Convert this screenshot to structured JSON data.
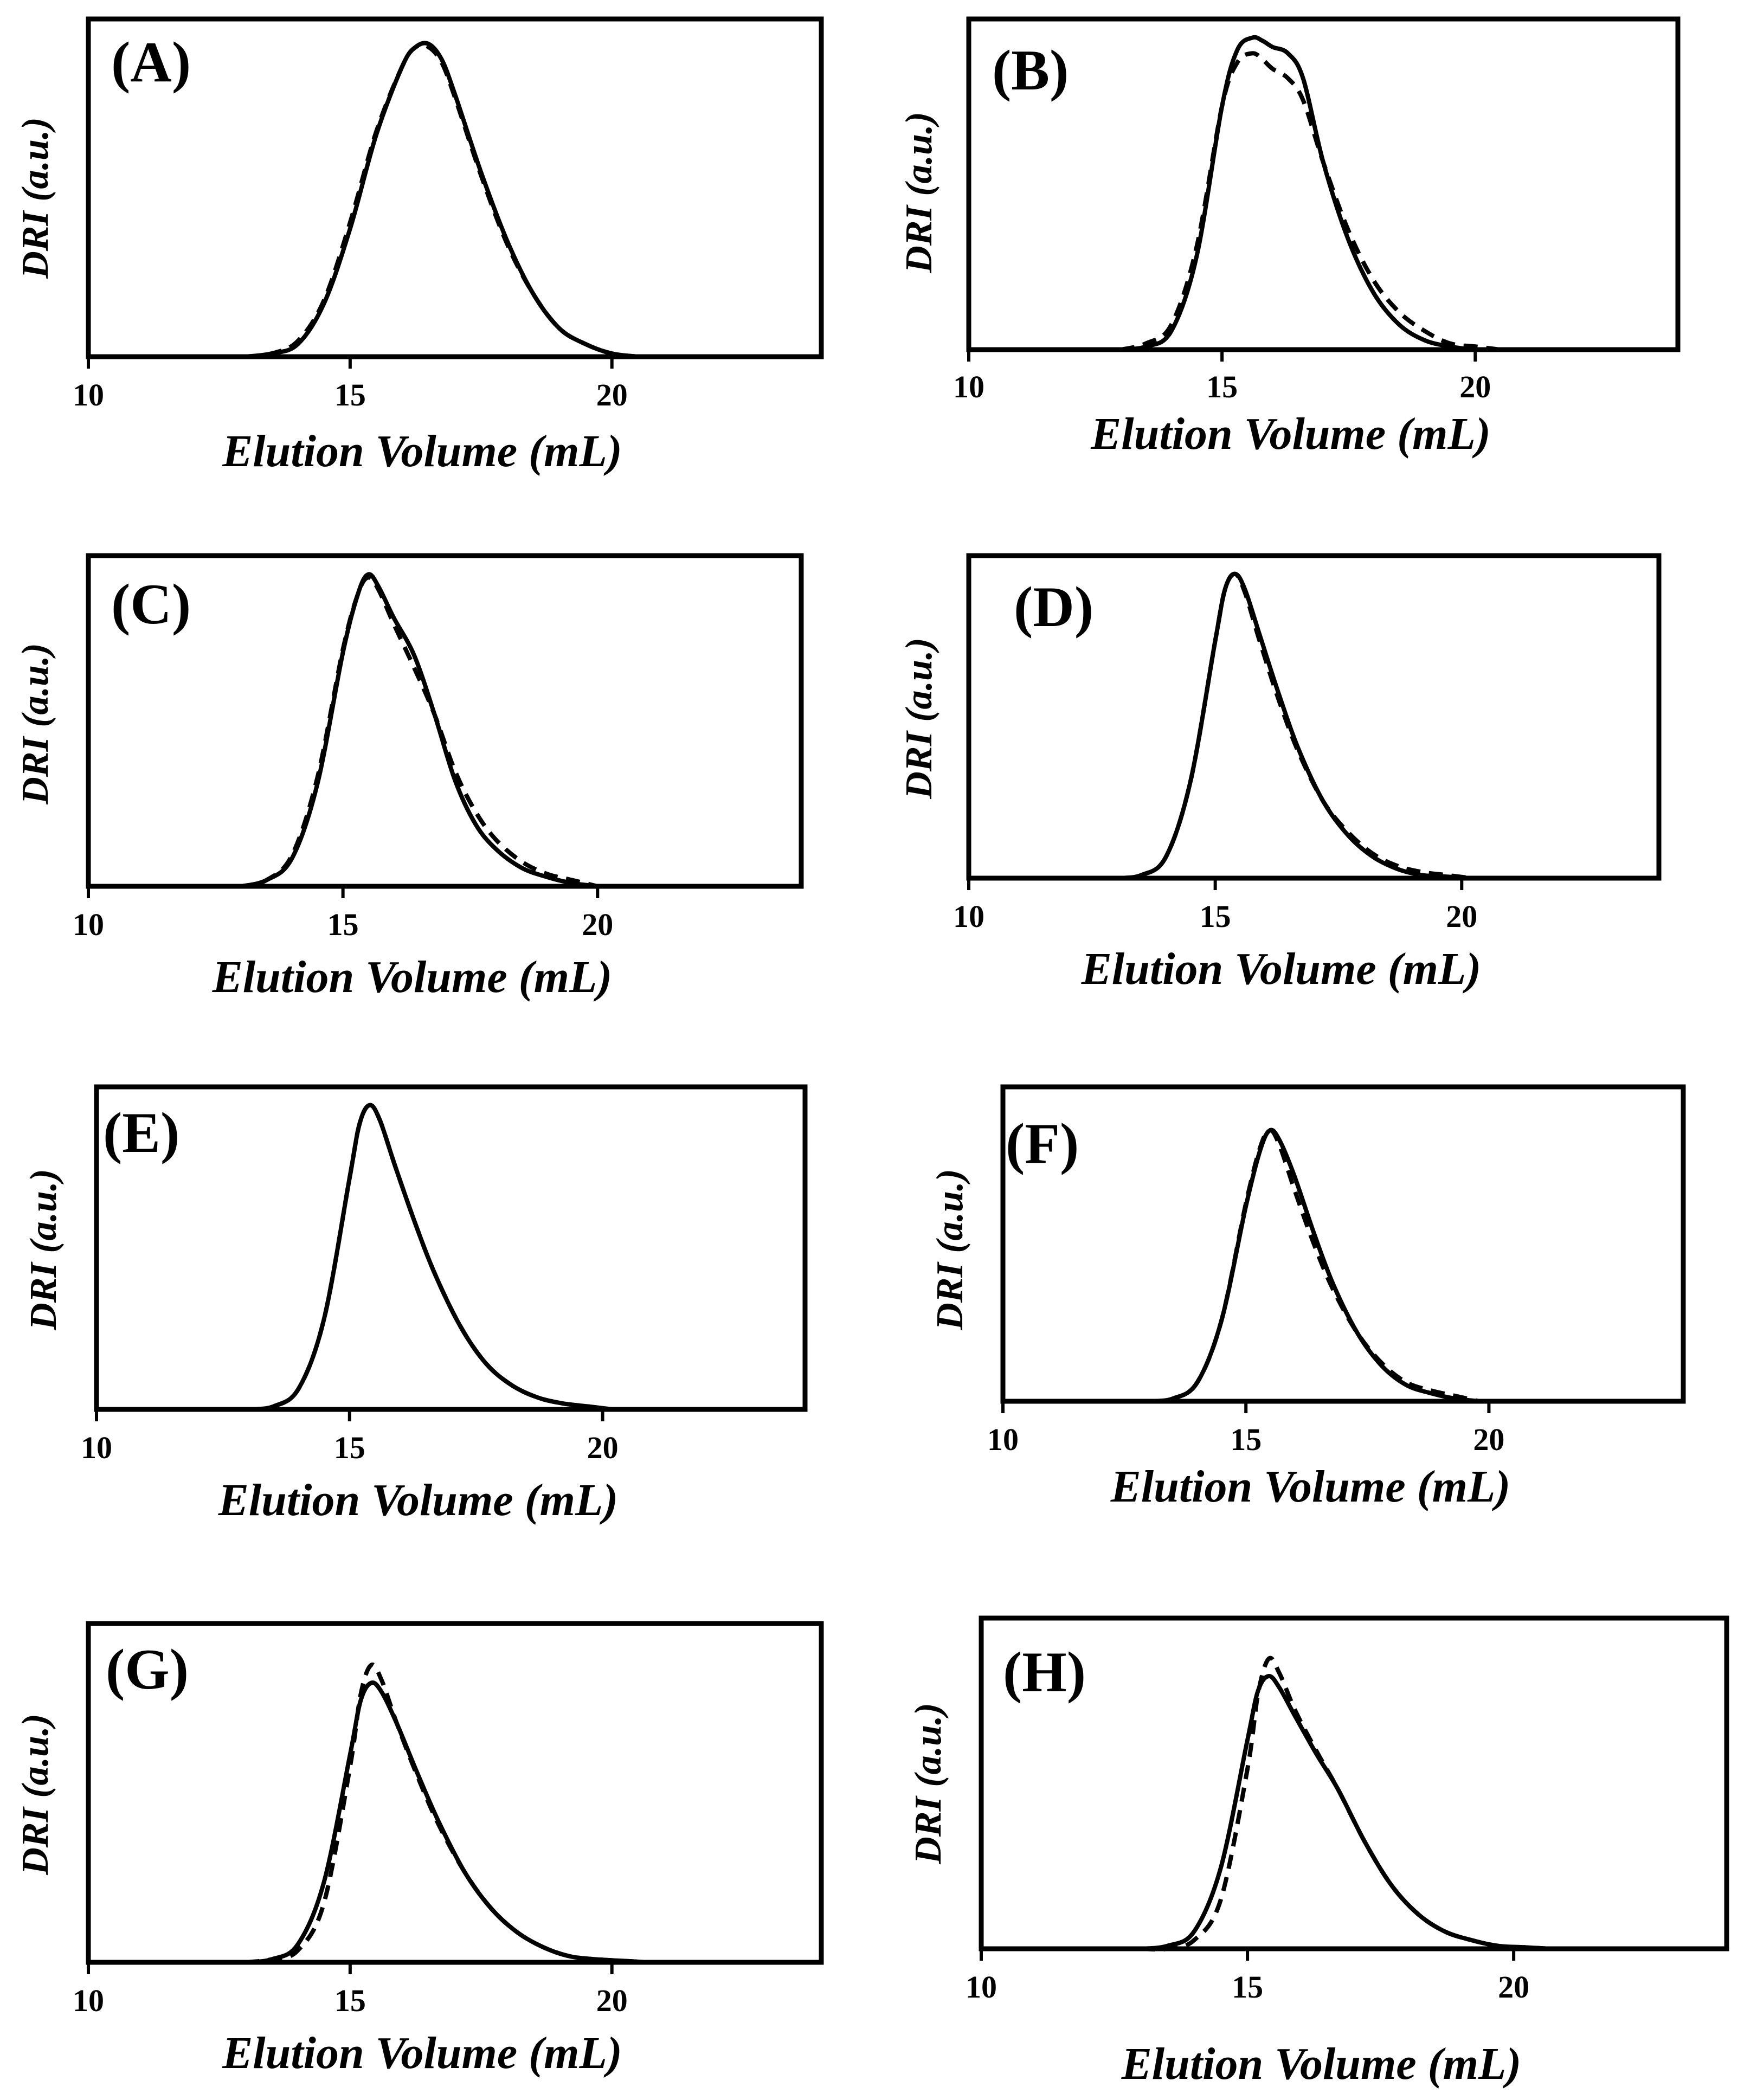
{
  "figure": {
    "panel_count": 8,
    "line_color": "#000000",
    "background_color": "#ffffff"
  },
  "chart_data": [
    {
      "panel": "(A)",
      "type": "line",
      "xlabel": "Elution Volume (mL)",
      "ylabel": "DRI (a.u.)",
      "xlim": [
        10,
        24
      ],
      "ylim": [
        0,
        1.08
      ],
      "xticks": [
        10,
        15,
        20
      ],
      "xtick_labels": [
        "10",
        "15",
        "20"
      ],
      "series": [
        {
          "name": "solid",
          "style": "solid",
          "x": [
            13,
            13.5,
            14,
            14.5,
            15,
            15.5,
            16,
            16.25,
            16.5,
            16.75,
            17,
            17.5,
            18,
            18.5,
            19,
            19.5,
            20,
            20.5
          ],
          "y": [
            0.0,
            0.01,
            0.04,
            0.17,
            0.41,
            0.71,
            0.93,
            0.99,
            1.0,
            0.95,
            0.84,
            0.59,
            0.37,
            0.2,
            0.09,
            0.04,
            0.01,
            0.0
          ]
        },
        {
          "name": "dashed",
          "style": "dashed",
          "x": [
            13,
            13.5,
            14,
            14.5,
            15,
            15.5,
            16,
            16.25,
            16.5,
            16.75,
            17,
            17.5,
            18,
            18.5,
            19,
            19.5,
            20,
            20.5
          ],
          "y": [
            0.0,
            0.01,
            0.05,
            0.18,
            0.43,
            0.72,
            0.93,
            0.99,
            0.99,
            0.94,
            0.83,
            0.58,
            0.36,
            0.2,
            0.09,
            0.04,
            0.01,
            0.0
          ]
        }
      ]
    },
    {
      "panel": "(B)",
      "type": "line",
      "xlabel": "Elution Volume (mL)",
      "ylabel": "DRI (a.u.)",
      "xlim": [
        10,
        24
      ],
      "ylim": [
        0,
        1.06
      ],
      "xticks": [
        10,
        15,
        20
      ],
      "xtick_labels": [
        "10",
        "15",
        "20"
      ],
      "series": [
        {
          "name": "solid",
          "style": "solid",
          "x": [
            13,
            13.5,
            14,
            14.5,
            15,
            15.3,
            15.6,
            15.8,
            16,
            16.3,
            16.6,
            17,
            17.5,
            18,
            18.5,
            19,
            19.5,
            20,
            20.5
          ],
          "y": [
            0.0,
            0.01,
            0.06,
            0.3,
            0.78,
            0.96,
            1.0,
            0.99,
            0.97,
            0.95,
            0.87,
            0.6,
            0.35,
            0.18,
            0.08,
            0.03,
            0.01,
            0.0,
            0.0
          ]
        },
        {
          "name": "dashed",
          "style": "dashed",
          "x": [
            13,
            13.5,
            14,
            14.5,
            15,
            15.3,
            15.6,
            15.8,
            16,
            16.3,
            16.6,
            17,
            17.5,
            18,
            18.5,
            19,
            19.5,
            20,
            20.5
          ],
          "y": [
            0.0,
            0.02,
            0.08,
            0.33,
            0.78,
            0.92,
            0.95,
            0.93,
            0.9,
            0.87,
            0.8,
            0.6,
            0.38,
            0.22,
            0.12,
            0.06,
            0.02,
            0.01,
            0.0
          ]
        }
      ]
    },
    {
      "panel": "(C)",
      "type": "line",
      "xlabel": "Elution Volume (mL)",
      "ylabel": "DRI (a.u.)",
      "xlim": [
        10,
        24
      ],
      "ylim": [
        0,
        1.06
      ],
      "xticks": [
        10,
        15,
        20
      ],
      "xtick_labels": [
        "10",
        "15",
        "20"
      ],
      "series": [
        {
          "name": "solid",
          "style": "solid",
          "x": [
            13,
            13.5,
            14,
            14.5,
            15,
            15.3,
            15.5,
            15.7,
            16,
            16.4,
            16.8,
            17.2,
            17.6,
            18,
            18.5,
            19,
            19.5,
            20
          ],
          "y": [
            0.0,
            0.02,
            0.09,
            0.33,
            0.75,
            0.94,
            1.0,
            0.96,
            0.86,
            0.74,
            0.55,
            0.34,
            0.2,
            0.12,
            0.06,
            0.03,
            0.01,
            0.0
          ]
        },
        {
          "name": "dashed",
          "style": "dashed",
          "x": [
            13,
            13.5,
            14,
            14.5,
            15,
            15.3,
            15.5,
            15.7,
            16,
            16.4,
            16.8,
            17.2,
            17.6,
            18,
            18.5,
            19,
            19.5,
            20
          ],
          "y": [
            0.0,
            0.02,
            0.1,
            0.35,
            0.76,
            0.94,
            0.99,
            0.95,
            0.84,
            0.7,
            0.55,
            0.37,
            0.24,
            0.15,
            0.08,
            0.04,
            0.02,
            0.0
          ]
        }
      ]
    },
    {
      "panel": "(D)",
      "type": "line",
      "xlabel": "Elution Volume (mL)",
      "ylabel": "DRI (a.u.)",
      "xlim": [
        10,
        24
      ],
      "ylim": [
        0,
        1.06
      ],
      "xticks": [
        10,
        15,
        20
      ],
      "xtick_labels": [
        "10",
        "15",
        "20"
      ],
      "series": [
        {
          "name": "solid",
          "style": "solid",
          "x": [
            13,
            13.5,
            14,
            14.5,
            15,
            15.2,
            15.4,
            15.6,
            15.9,
            16.3,
            16.7,
            17.2,
            17.7,
            18.2,
            18.7,
            19.2,
            19.7,
            20.2
          ],
          "y": [
            0.0,
            0.01,
            0.07,
            0.32,
            0.78,
            0.95,
            1.0,
            0.95,
            0.8,
            0.6,
            0.42,
            0.25,
            0.14,
            0.07,
            0.03,
            0.01,
            0.005,
            0.0
          ]
        },
        {
          "name": "dashed",
          "style": "dashed",
          "x": [
            13,
            13.5,
            14,
            14.5,
            15,
            15.2,
            15.4,
            15.6,
            15.9,
            16.3,
            16.7,
            17.2,
            17.7,
            18.2,
            18.7,
            19.2,
            19.7,
            20.2
          ],
          "y": [
            0.0,
            0.01,
            0.07,
            0.32,
            0.78,
            0.95,
            1.0,
            0.94,
            0.78,
            0.58,
            0.41,
            0.25,
            0.15,
            0.08,
            0.04,
            0.02,
            0.01,
            0.0
          ]
        }
      ]
    },
    {
      "panel": "(E)",
      "type": "line",
      "xlabel": "Elution Volume (mL)",
      "ylabel": "DRI (a.u.)",
      "xlim": [
        10,
        24
      ],
      "ylim": [
        0,
        1.06
      ],
      "xticks": [
        10,
        15,
        20
      ],
      "xtick_labels": [
        "10",
        "15",
        "20"
      ],
      "series": [
        {
          "name": "solid",
          "style": "solid",
          "x": [
            13,
            13.5,
            14,
            14.5,
            15,
            15.2,
            15.4,
            15.6,
            15.9,
            16.3,
            16.7,
            17.2,
            17.7,
            18.2,
            18.7,
            19.2,
            19.7,
            20.2
          ],
          "y": [
            0.0,
            0.01,
            0.07,
            0.3,
            0.76,
            0.94,
            1.0,
            0.95,
            0.8,
            0.61,
            0.44,
            0.27,
            0.15,
            0.08,
            0.04,
            0.02,
            0.01,
            0.0
          ]
        },
        {
          "name": "dashed",
          "style": "dashed",
          "x": [
            13,
            13.5,
            14,
            14.5,
            15,
            15.2,
            15.4,
            15.6,
            15.9,
            16.3,
            16.7,
            17.2,
            17.7,
            18.2,
            18.7,
            19.2,
            19.7,
            20.2
          ],
          "y": [
            0.0,
            0.01,
            0.07,
            0.3,
            0.76,
            0.94,
            1.0,
            0.95,
            0.8,
            0.61,
            0.44,
            0.27,
            0.15,
            0.08,
            0.04,
            0.02,
            0.01,
            0.0
          ]
        }
      ]
    },
    {
      "panel": "(F)",
      "type": "line",
      "xlabel": "Elution Volume (mL)",
      "ylabel": "DRI (a.u.)",
      "xlim": [
        10,
        24
      ],
      "ylim": [
        0,
        1.16
      ],
      "xticks": [
        10,
        15,
        20
      ],
      "xtick_labels": [
        "10",
        "15",
        "20"
      ],
      "series": [
        {
          "name": "solid",
          "style": "solid",
          "x": [
            13,
            13.5,
            14,
            14.5,
            15,
            15.3,
            15.5,
            15.7,
            16,
            16.4,
            16.8,
            17.3,
            17.8,
            18.3,
            18.8,
            19.3,
            19.8
          ],
          "y": [
            0.0,
            0.01,
            0.07,
            0.3,
            0.72,
            0.93,
            1.0,
            0.96,
            0.83,
            0.62,
            0.43,
            0.25,
            0.13,
            0.06,
            0.03,
            0.01,
            0.0
          ]
        },
        {
          "name": "dashed",
          "style": "dashed",
          "x": [
            13,
            13.5,
            14,
            14.5,
            15,
            15.3,
            15.5,
            15.7,
            16,
            16.4,
            16.8,
            17.3,
            17.8,
            18.3,
            18.8,
            19.3,
            19.8
          ],
          "y": [
            0.0,
            0.01,
            0.07,
            0.3,
            0.73,
            0.94,
            1.0,
            0.94,
            0.78,
            0.58,
            0.41,
            0.25,
            0.14,
            0.07,
            0.04,
            0.02,
            0.0
          ]
        }
      ]
    },
    {
      "panel": "(G)",
      "type": "line",
      "xlabel": "Elution Volume (mL)",
      "ylabel": "DRI (a.u.)",
      "xlim": [
        10,
        24
      ],
      "ylim": [
        0,
        1.14
      ],
      "xticks": [
        10,
        15,
        20
      ],
      "xtick_labels": [
        "10",
        "15",
        "20"
      ],
      "series": [
        {
          "name": "solid",
          "style": "solid",
          "x": [
            13,
            13.5,
            14,
            14.5,
            15,
            15.2,
            15.4,
            15.6,
            15.9,
            16.3,
            16.7,
            17.2,
            17.7,
            18.2,
            18.7,
            19.2,
            19.7,
            20.2,
            20.7
          ],
          "y": [
            0.0,
            0.01,
            0.06,
            0.27,
            0.7,
            0.88,
            0.94,
            0.91,
            0.8,
            0.63,
            0.47,
            0.3,
            0.18,
            0.1,
            0.05,
            0.02,
            0.01,
            0.005,
            0.0
          ]
        },
        {
          "name": "dashed",
          "style": "dashed",
          "x": [
            13,
            13.5,
            14,
            14.5,
            15,
            15.2,
            15.4,
            15.6,
            15.9,
            16.3,
            16.7,
            17.2,
            17.7,
            18.2,
            18.7,
            19.2,
            19.7,
            20.2,
            20.7
          ],
          "y": [
            0.0,
            0.01,
            0.04,
            0.2,
            0.66,
            0.9,
            1.0,
            0.95,
            0.8,
            0.62,
            0.46,
            0.3,
            0.18,
            0.1,
            0.05,
            0.02,
            0.01,
            0.005,
            0.0
          ]
        }
      ]
    },
    {
      "panel": "(H)",
      "type": "line",
      "xlabel": "Elution Volume (mL)",
      "ylabel": "DRI (a.u.)",
      "xlim": [
        10,
        24
      ],
      "ylim": [
        0,
        1.14
      ],
      "xticks": [
        10,
        15,
        20
      ],
      "xtick_labels": [
        "10",
        "15",
        "20"
      ],
      "series": [
        {
          "name": "solid",
          "style": "solid",
          "x": [
            13,
            13.5,
            14,
            14.5,
            15,
            15.2,
            15.4,
            15.6,
            15.9,
            16.3,
            16.7,
            17.2,
            17.7,
            18.2,
            18.7,
            19.2,
            19.7,
            20.2,
            20.7
          ],
          "y": [
            0.0,
            0.01,
            0.06,
            0.28,
            0.72,
            0.89,
            0.94,
            0.9,
            0.8,
            0.67,
            0.55,
            0.37,
            0.22,
            0.12,
            0.06,
            0.03,
            0.01,
            0.005,
            0.0
          ]
        },
        {
          "name": "dashed",
          "style": "dashed",
          "x": [
            13,
            13.5,
            14,
            14.5,
            15,
            15.2,
            15.4,
            15.6,
            15.9,
            16.3,
            16.7,
            17.2,
            17.7,
            18.2,
            18.7,
            19.2,
            19.7,
            20.2,
            20.7
          ],
          "y": [
            0.0,
            0.0,
            0.03,
            0.17,
            0.62,
            0.88,
            1.0,
            0.95,
            0.82,
            0.68,
            0.55,
            0.37,
            0.22,
            0.12,
            0.06,
            0.03,
            0.01,
            0.005,
            0.0
          ]
        }
      ]
    }
  ]
}
